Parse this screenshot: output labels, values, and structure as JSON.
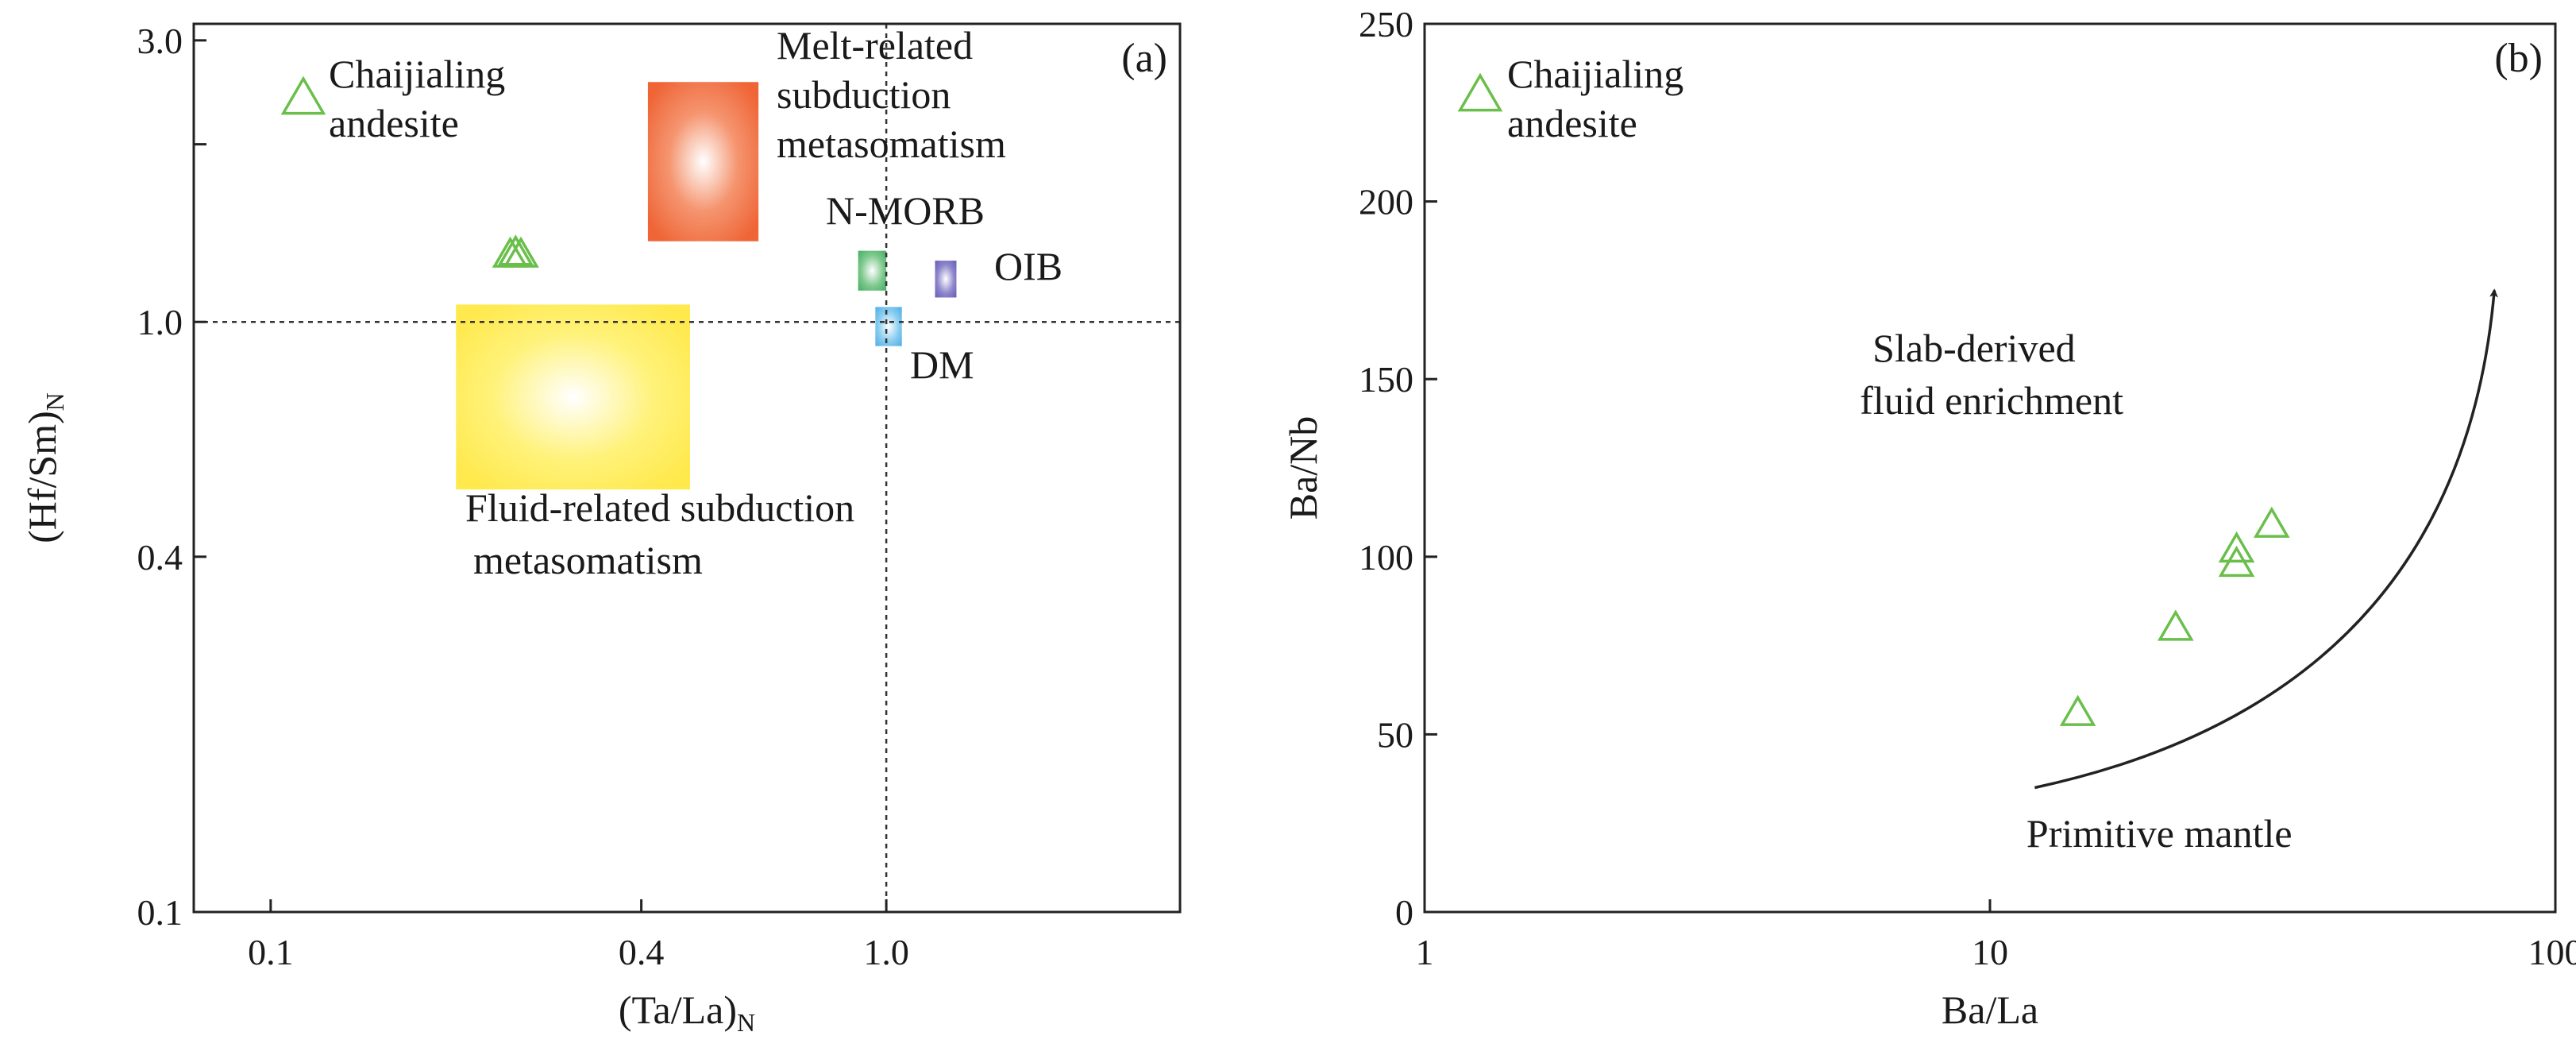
{
  "chart_data": [
    {
      "type": "scatter",
      "panel_label": "(a)",
      "xlabel": "(Ta/La)",
      "xlabel_sub": "N",
      "ylabel": "(Hf/Sm)",
      "ylabel_sub": "N",
      "x_scale": "log",
      "y_scale": "log",
      "xlim": [
        0.075,
        3.0
      ],
      "ylim": [
        0.1,
        3.2
      ],
      "x_ticks": [
        {
          "value": 0.1,
          "label": "0.1"
        },
        {
          "value": 0.4,
          "label": "0.4"
        },
        {
          "value": 1.0,
          "label": "1.0"
        }
      ],
      "y_ticks": [
        {
          "value": 0.1,
          "label": "0.1"
        },
        {
          "value": 0.4,
          "label": "0.4"
        },
        {
          "value": 1.0,
          "label": "1.0"
        },
        {
          "value": 2.0,
          "label": ""
        },
        {
          "value": 3.0,
          "label": "3.0"
        }
      ],
      "reference_lines": [
        {
          "axis": "x",
          "value": 1.0
        },
        {
          "axis": "y",
          "value": 1.0
        }
      ],
      "legend": {
        "label_line1": "Chaijialing",
        "label_line2": "andesite",
        "marker": "open-triangle",
        "color": "#6abf4b",
        "placement": "top-left"
      },
      "points": [
        {
          "x": 0.245,
          "y": 1.3
        },
        {
          "x": 0.25,
          "y": 1.31
        },
        {
          "x": 0.255,
          "y": 1.3
        }
      ],
      "regions": [
        {
          "name": "Fluid-related subduction metasomatism",
          "x0": 0.2,
          "x1": 0.48,
          "y0": 0.52,
          "y1": 1.07,
          "color": "#ffe94d",
          "label_line1": "Fluid-related subduction",
          "label_line2": "metasomatism"
        },
        {
          "name": "Melt-related subduction metasomatism",
          "x0": 0.41,
          "x1": 0.62,
          "y0": 1.37,
          "y1": 2.55,
          "color": "#f06a3a",
          "label_line1": "Melt-related",
          "label_line2": "subduction",
          "label_line3": "metasomatism"
        },
        {
          "name": "N-MORB",
          "x0": 0.9,
          "x1": 1.0,
          "y0": 1.13,
          "y1": 1.32,
          "color": "#4cb36a",
          "label": "N-MORB"
        },
        {
          "name": "OIB",
          "x0": 1.2,
          "x1": 1.3,
          "y0": 1.1,
          "y1": 1.27,
          "color": "#6b63b8",
          "label": "OIB"
        },
        {
          "name": "DM",
          "x0": 0.96,
          "x1": 1.06,
          "y0": 0.91,
          "y1": 1.06,
          "color": "#56b3e6",
          "label": "DM"
        }
      ]
    },
    {
      "type": "scatter",
      "panel_label": "(b)",
      "xlabel": "Ba/La",
      "ylabel": "Ba/Nb",
      "x_scale": "log",
      "y_scale": "linear",
      "xlim": [
        1,
        100
      ],
      "ylim": [
        0,
        250
      ],
      "x_ticks": [
        {
          "value": 1,
          "label": "1"
        },
        {
          "value": 10,
          "label": "10"
        },
        {
          "value": 100,
          "label": "100"
        }
      ],
      "y_ticks": [
        {
          "value": 0,
          "label": "0"
        },
        {
          "value": 50,
          "label": "50"
        },
        {
          "value": 100,
          "label": "100"
        },
        {
          "value": 150,
          "label": "150"
        },
        {
          "value": 200,
          "label": "200"
        },
        {
          "value": 250,
          "label": "250"
        }
      ],
      "legend": {
        "label_line1": "Chaijialing",
        "label_line2": "andesite",
        "marker": "open-triangle",
        "color": "#6abf4b",
        "placement": "top-left"
      },
      "points": [
        {
          "x": 14.3,
          "y": 56
        },
        {
          "x": 21.3,
          "y": 80
        },
        {
          "x": 27.3,
          "y": 98
        },
        {
          "x": 27.3,
          "y": 102
        },
        {
          "x": 31.5,
          "y": 109
        }
      ],
      "trend_arrow": {
        "from": {
          "x": 12,
          "y": 35
        },
        "to": {
          "x": 78,
          "y": 175
        }
      },
      "annotations": [
        {
          "text_line1": "Slab-derived",
          "text_line2": "fluid enrichment",
          "x": 6.2,
          "y": 155
        },
        {
          "text_line1": "Primitive mantle",
          "x": 11.6,
          "y": 21
        }
      ]
    }
  ]
}
